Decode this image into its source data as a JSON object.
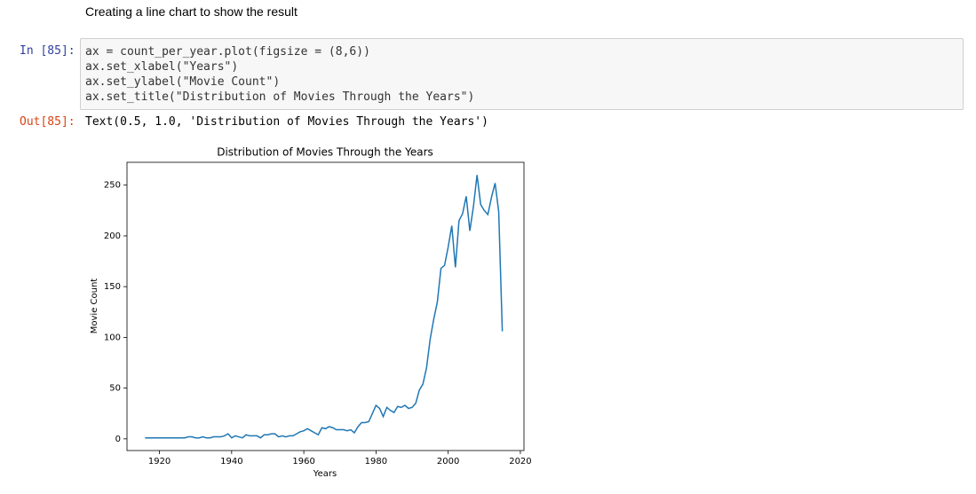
{
  "notebook": {
    "markdown": "Creating a line chart to show the result",
    "in_prompt": "In [85]:",
    "code_lines": [
      "ax = count_per_year.plot(figsize = (8,6))",
      "ax.set_xlabel(\"Years\")",
      "ax.set_ylabel(\"Movie Count\")",
      "ax.set_title(\"Distribution of Movies Through the Years\")"
    ],
    "out_prompt": "Out[85]:",
    "output_text": "Text(0.5, 1.0, 'Distribution of Movies Through the Years')"
  },
  "chart_data": {
    "type": "line",
    "title": "Distribution of Movies Through the Years",
    "x_label": "Years",
    "y_label": "Movie Count",
    "color": "#1f77b4",
    "x": [
      1916,
      1917,
      1918,
      1919,
      1920,
      1921,
      1922,
      1923,
      1924,
      1925,
      1926,
      1927,
      1928,
      1929,
      1930,
      1931,
      1932,
      1933,
      1934,
      1935,
      1936,
      1937,
      1938,
      1939,
      1940,
      1941,
      1942,
      1943,
      1944,
      1945,
      1946,
      1947,
      1948,
      1949,
      1950,
      1951,
      1952,
      1953,
      1954,
      1955,
      1956,
      1957,
      1958,
      1959,
      1960,
      1961,
      1962,
      1963,
      1964,
      1965,
      1966,
      1967,
      1968,
      1969,
      1970,
      1971,
      1972,
      1973,
      1974,
      1975,
      1976,
      1977,
      1978,
      1979,
      1980,
      1981,
      1982,
      1983,
      1984,
      1985,
      1986,
      1987,
      1988,
      1989,
      1990,
      1991,
      1992,
      1993,
      1994,
      1995,
      1996,
      1997,
      1998,
      1999,
      2000,
      2001,
      2002,
      2003,
      2004,
      2005,
      2006,
      2007,
      2008,
      2009,
      2010,
      2011,
      2012,
      2013,
      2014,
      2015
    ],
    "values": [
      1,
      1,
      1,
      1,
      1,
      1,
      1,
      1,
      1,
      1,
      1,
      1,
      2,
      2,
      1,
      1,
      2,
      1,
      1,
      2,
      2,
      2,
      3,
      5,
      1,
      3,
      2,
      1,
      4,
      3,
      3,
      3,
      1,
      4,
      4,
      5,
      5,
      2,
      3,
      2,
      3,
      3,
      5,
      7,
      8,
      10,
      8,
      6,
      4,
      11,
      10,
      12,
      11,
      9,
      9,
      9,
      8,
      9,
      6,
      12,
      16,
      16,
      17,
      25,
      33,
      30,
      22,
      31,
      28,
      26,
      32,
      31,
      33,
      30,
      31,
      35,
      48,
      54,
      70,
      98,
      118,
      135,
      168,
      171,
      189,
      210,
      169,
      215,
      222,
      239,
      205,
      229,
      260,
      231,
      225,
      221,
      238,
      252,
      224,
      106
    ],
    "xlim": [
      1911,
      2021
    ],
    "ylim": [
      -11.5,
      272.5
    ],
    "xticks": [
      1920,
      1940,
      1960,
      1980,
      2000,
      2020
    ],
    "yticks": [
      0,
      50,
      100,
      150,
      200,
      250
    ],
    "grid": false
  }
}
